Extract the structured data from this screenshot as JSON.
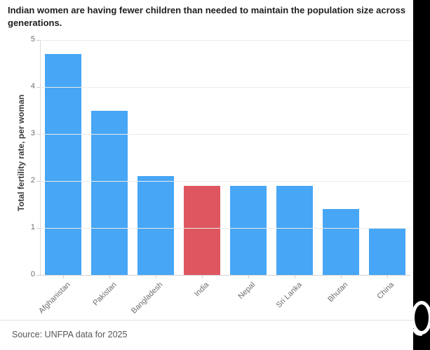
{
  "page": {
    "title": "Indian women are having fewer children than needed to maintain the population size across generations.",
    "source": "Source: UNFPA data for 2025"
  },
  "colors": {
    "bar": "#47A6F5",
    "bar_highlight": "#DE5760",
    "grid": "#EBEBEB",
    "axis": "#D9D9D9",
    "side_strip": "#000000"
  },
  "chart_data": {
    "type": "bar",
    "categories": [
      "Afghanistan",
      "Pakistan",
      "Bangladesh",
      "India",
      "Nepal",
      "Sri Lanka",
      "Bhutan",
      "China"
    ],
    "values": [
      4.7,
      3.5,
      2.1,
      1.9,
      1.9,
      1.9,
      1.4,
      1
    ],
    "highlight_category": "India",
    "highlight_index": 3,
    "title": "Indian women are having fewer children than needed to maintain the population size across generations.",
    "xlabel": "",
    "ylabel": "Total fertility rate, per woman",
    "ylim": [
      0,
      5
    ],
    "yticks": [
      0,
      1,
      2,
      3,
      4,
      5
    ],
    "grid": true,
    "legend": false,
    "bar_labels_inside": true
  }
}
